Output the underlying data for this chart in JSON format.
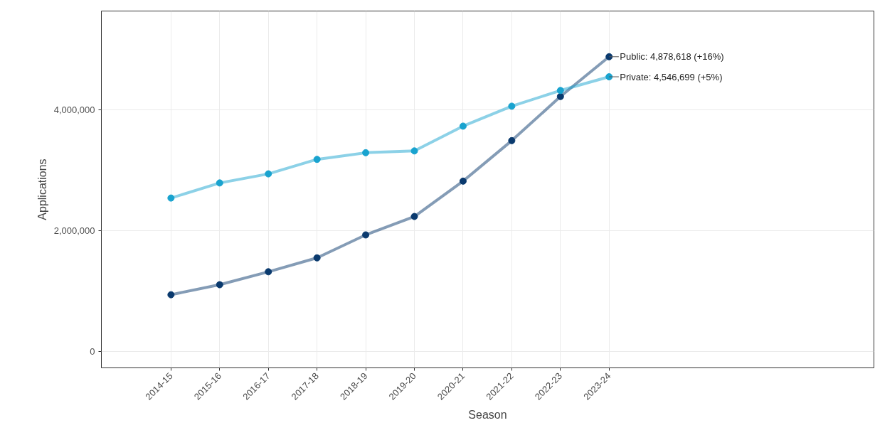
{
  "chart_data": {
    "type": "line",
    "xlabel": "Season",
    "ylabel": "Applications",
    "categories": [
      "2014-15",
      "2015-16",
      "2016-17",
      "2017-18",
      "2018-19",
      "2019-20",
      "2020-21",
      "2021-22",
      "2022-23",
      "2023-24"
    ],
    "series": [
      {
        "color": "#0a3a6e",
        "values": [
          940000,
          1106000,
          1320000,
          1550000,
          1930000,
          2235000,
          2820000,
          3490000,
          4220000,
          4878618
        ]
      },
      {
        "color": "#19a3cf",
        "values": [
          2540000,
          2790000,
          2940000,
          3180000,
          3290000,
          3320000,
          3730000,
          4060000,
          4320000,
          4546699
        ]
      }
    ],
    "ylim": [
      -270000,
      5635000
    ],
    "yticks": [
      {
        "value": 0,
        "label": "0"
      },
      {
        "value": 2000000,
        "label": "2,000,000"
      },
      {
        "value": 4000000,
        "label": "4,000,000"
      }
    ],
    "grid": true,
    "marker": "circle",
    "line_style": "solid",
    "annotations": [
      {
        "text": "Public: 4,878,618 (+16%)",
        "x": "2023-24",
        "y": 4878618
      },
      {
        "text": "Private: 4,546,699 (+5%)",
        "x": "2023-24",
        "y": 4546699
      }
    ]
  }
}
